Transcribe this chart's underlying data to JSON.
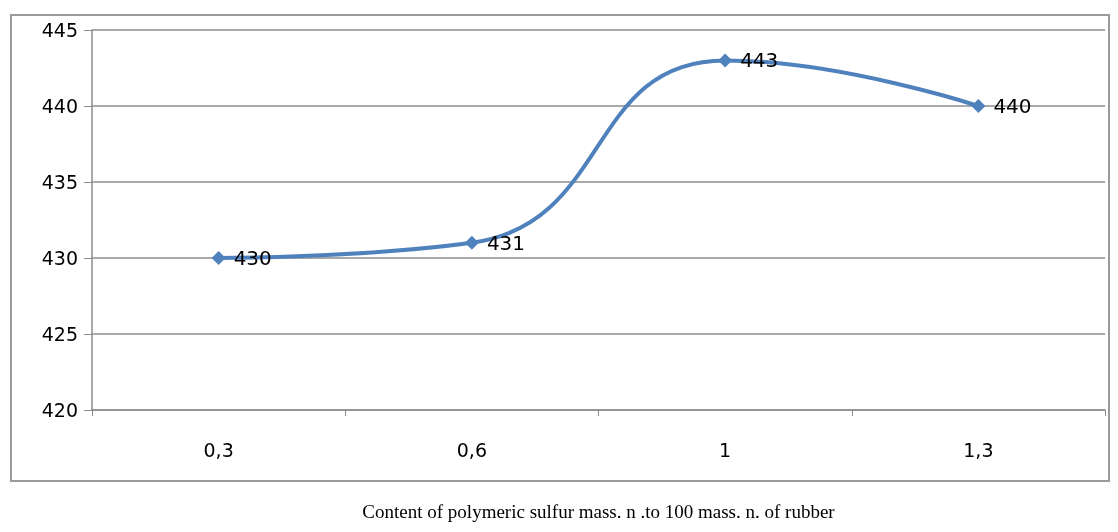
{
  "chart_data": {
    "type": "line",
    "xlabel": "Content of polymeric sulfur mass. n .to 100 mass. n. of rubber",
    "categories": [
      "0,3",
      "0,6",
      "1",
      "1,3"
    ],
    "series": [
      {
        "color": "#4f81bd",
        "values": [
          430,
          431,
          443,
          440
        ]
      }
    ],
    "ylim": [
      420,
      445
    ],
    "yticks": [
      420,
      425,
      430,
      435,
      440,
      445
    ],
    "grid": "y",
    "marker": "diamond",
    "line_style": "solid",
    "data_labels": true
  }
}
